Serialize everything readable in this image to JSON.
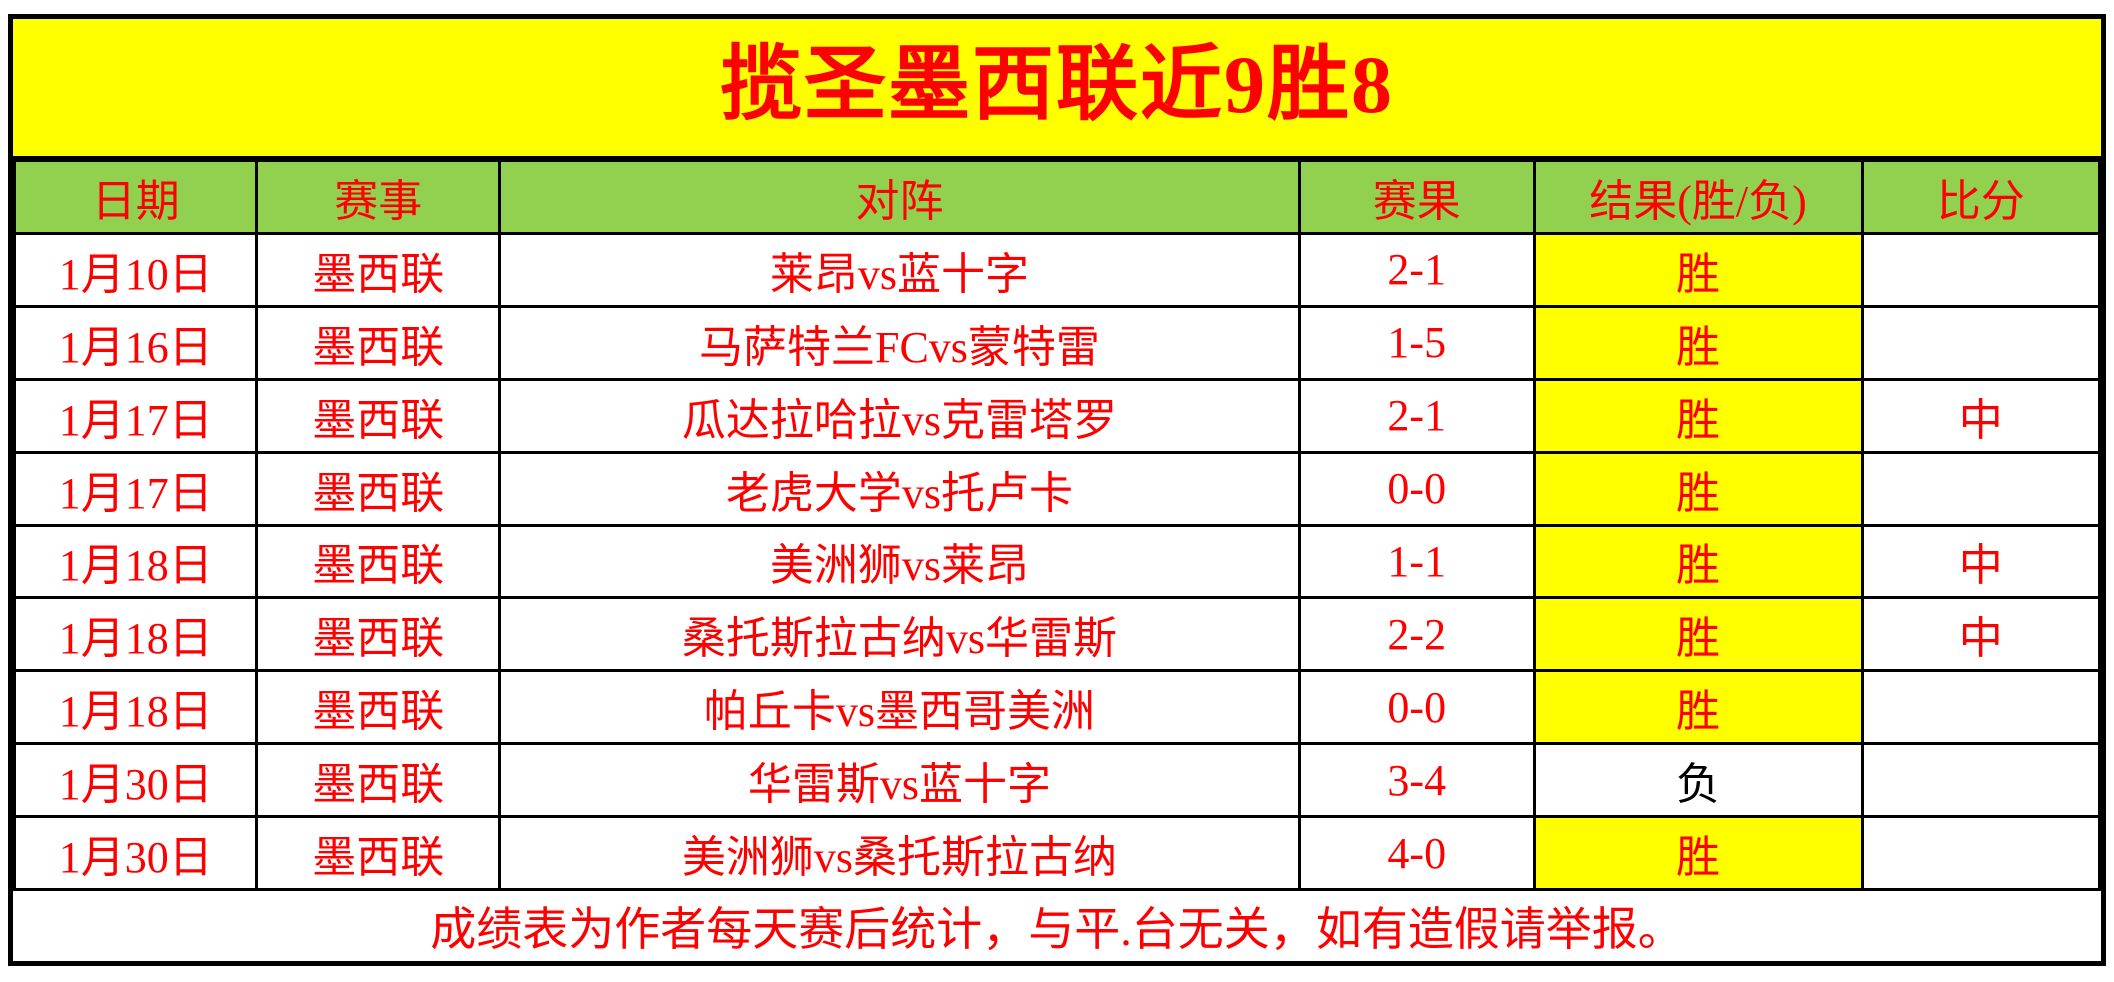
{
  "title": "揽圣墨西联近9胜8",
  "colors": {
    "title_bg": "#FFFF00",
    "header_bg": "#92D050",
    "win_bg": "#FFFF00",
    "red_text": "#FF0000",
    "loss_text": "#000000",
    "border": "#000000"
  },
  "table": {
    "headers": {
      "date": "日期",
      "league": "赛事",
      "match": "对阵",
      "score": "赛果",
      "result": "结果(胜/负)",
      "hit": "比分"
    },
    "rows": [
      {
        "date": "1月10日",
        "league": "墨西联",
        "match": "莱昂vs蓝十字",
        "score": "2-1",
        "result": "胜",
        "hit": ""
      },
      {
        "date": "1月16日",
        "league": "墨西联",
        "match": "马萨特兰FCvs蒙特雷",
        "score": "1-5",
        "result": "胜",
        "hit": ""
      },
      {
        "date": "1月17日",
        "league": "墨西联",
        "match": "瓜达拉哈拉vs克雷塔罗",
        "score": "2-1",
        "result": "胜",
        "hit": "中"
      },
      {
        "date": "1月17日",
        "league": "墨西联",
        "match": "老虎大学vs托卢卡",
        "score": "0-0",
        "result": "胜",
        "hit": ""
      },
      {
        "date": "1月18日",
        "league": "墨西联",
        "match": "美洲狮vs莱昂",
        "score": "1-1",
        "result": "胜",
        "hit": "中"
      },
      {
        "date": "1月18日",
        "league": "墨西联",
        "match": "桑托斯拉古纳vs华雷斯",
        "score": "2-2",
        "result": "胜",
        "hit": "中"
      },
      {
        "date": "1月18日",
        "league": "墨西联",
        "match": "帕丘卡vs墨西哥美洲",
        "score": "0-0",
        "result": "胜",
        "hit": ""
      },
      {
        "date": "1月30日",
        "league": "墨西联",
        "match": "华雷斯vs蓝十字",
        "score": "3-4",
        "result": "负",
        "hit": ""
      },
      {
        "date": "1月30日",
        "league": "墨西联",
        "match": "美洲狮vs桑托斯拉古纳",
        "score": "4-0",
        "result": "胜",
        "hit": ""
      }
    ],
    "footer": "成绩表为作者每天赛后统计，与平.台无关，如有造假请举报。"
  }
}
